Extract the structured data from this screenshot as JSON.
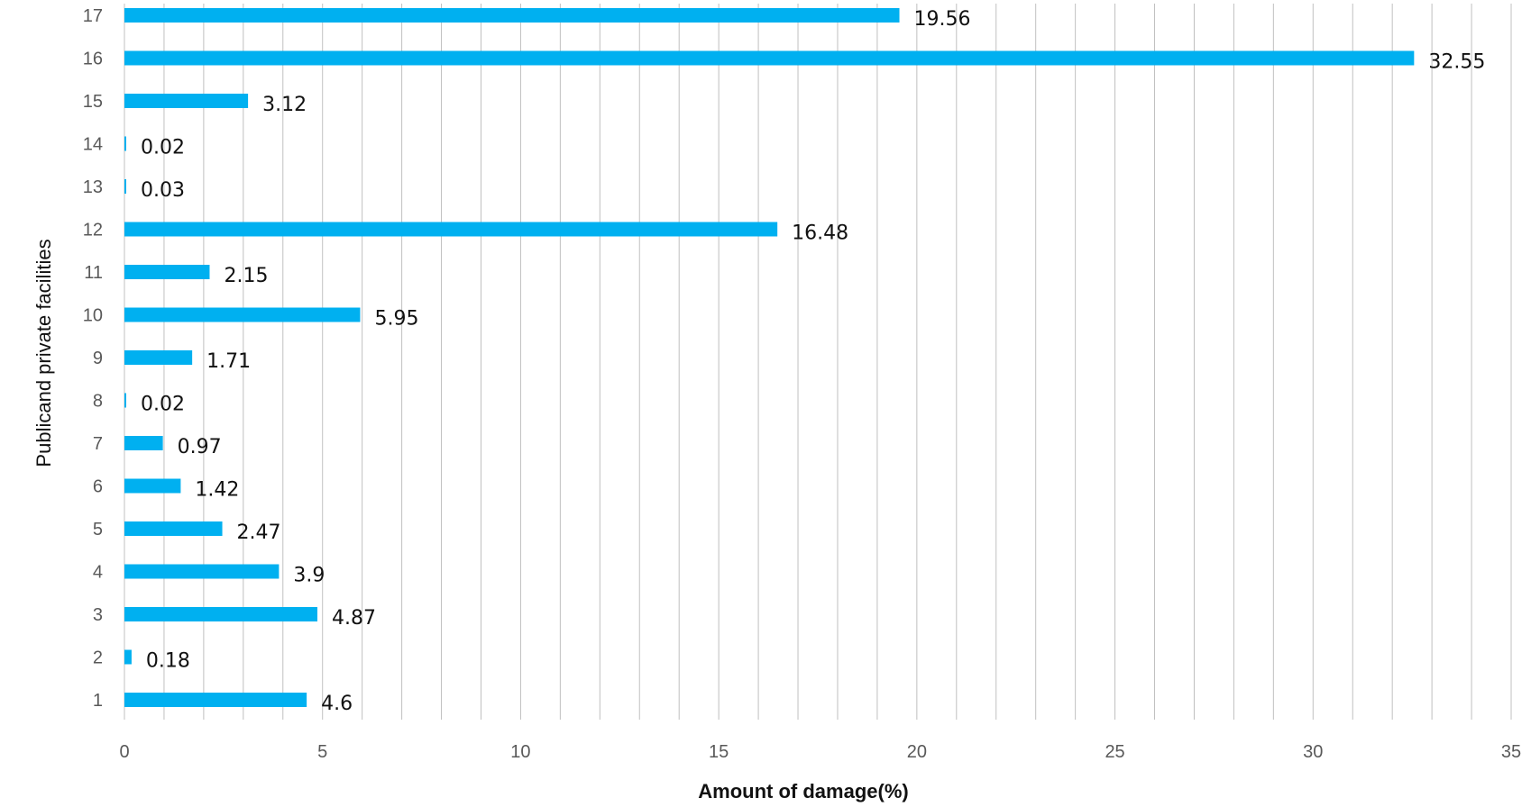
{
  "chart_data": {
    "type": "bar",
    "orientation": "horizontal",
    "title": "",
    "xlabel": "Amount of damage(%)",
    "ylabel": "Publicand private facilities",
    "categories": [
      "1",
      "2",
      "3",
      "4",
      "5",
      "6",
      "7",
      "8",
      "9",
      "10",
      "11",
      "12",
      "13",
      "14",
      "15",
      "16",
      "17"
    ],
    "values": [
      4.6,
      0.18,
      4.87,
      3.9,
      2.47,
      1.42,
      0.97,
      0.02,
      1.71,
      5.95,
      2.15,
      16.48,
      0.03,
      0.02,
      3.12,
      32.55,
      19.56
    ],
    "data_labels": [
      "4.6",
      "0.18",
      "4.87",
      "3.9",
      "2.47",
      "1.42",
      "0.97",
      "0.02",
      "1.71",
      "5.95",
      "2.15",
      "16.48",
      "0.03",
      "0.02",
      "3.12",
      "32.55",
      "19.56"
    ],
    "xlim": [
      0,
      35
    ],
    "x_ticks": [
      0,
      5,
      10,
      15,
      20,
      25,
      30,
      35
    ],
    "x_tick_labels": [
      "0",
      "5",
      "10",
      "15",
      "20",
      "25",
      "30",
      "35"
    ],
    "minor_grid_step": 1,
    "grid": "vertical",
    "legend": "none",
    "bar_color": "#00b0f0",
    "grid_color": "#c0c0c0"
  }
}
